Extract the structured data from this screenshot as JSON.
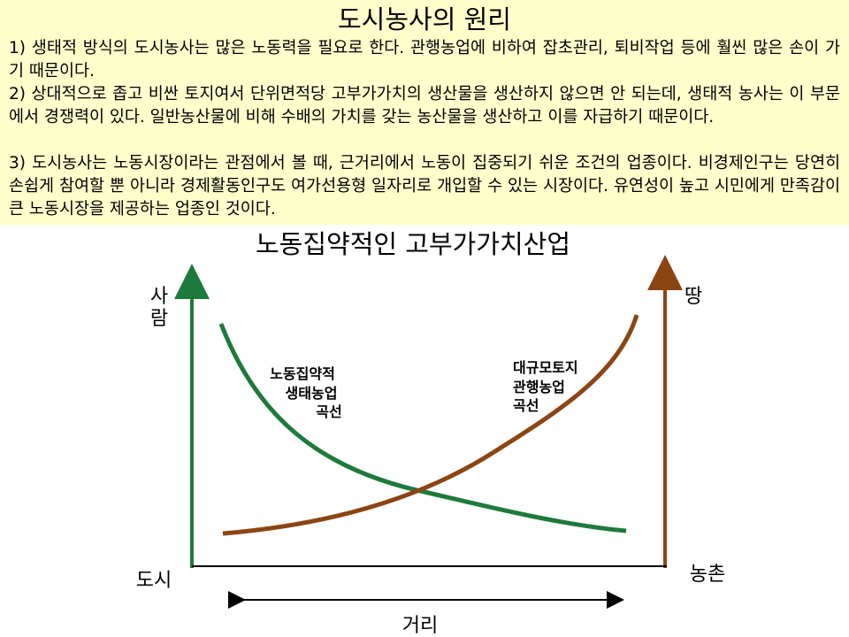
{
  "header": {
    "title": "도시농사의 원리",
    "paragraphs": [
      "1) 생태적 방식의 도시농사는 많은 노동력을 필요로 한다. 관행농업에 비하여 잡초관리, 퇴비작업 등에 훨씬 많은 손이 가기 때문이다.",
      "2) 상대적으로 좁고 비싼 토지여서 단위면적당 고부가가치의 생산물을 생산하지 않으면 안 되는데, 생태적 농사는 이 부문에서 경쟁력이 있다. 일반농산물에 비해 수배의 가치를 갖는 농산물을 생산하고 이를 자급하기 때문이다.",
      "3) 도시농사는 노동시장이라는 관점에서 볼 때, 근거리에서 노동이 집중되기 쉬운 조건의 업종이다. 비경제인구는 당연히 손쉽게 참여할 뿐 아니라 경제활동인구도 여가선용형 일자리로 개입할 수 있는 시장이다. 유연성이 높고 시민에게 만족감이 큰 노동시장을 제공하는 업종인 것이다."
    ]
  },
  "diagram": {
    "title": "노동집약적인 고부가가치산업",
    "left_axis_label": [
      "사",
      "람"
    ],
    "right_axis_label": "땅",
    "left_bottom_label": "도시",
    "right_bottom_label": "농촌",
    "distance_label": "거리",
    "green_curve_label": [
      "노동집약적",
      "생태농업",
      "곡선"
    ],
    "brown_curve_label": [
      "대규모토지",
      "관행농업",
      "곡선"
    ],
    "colors": {
      "green": "#1e7a3c",
      "brown": "#8b4513",
      "axis": "#000000",
      "text_box": "#ffffcc"
    }
  }
}
